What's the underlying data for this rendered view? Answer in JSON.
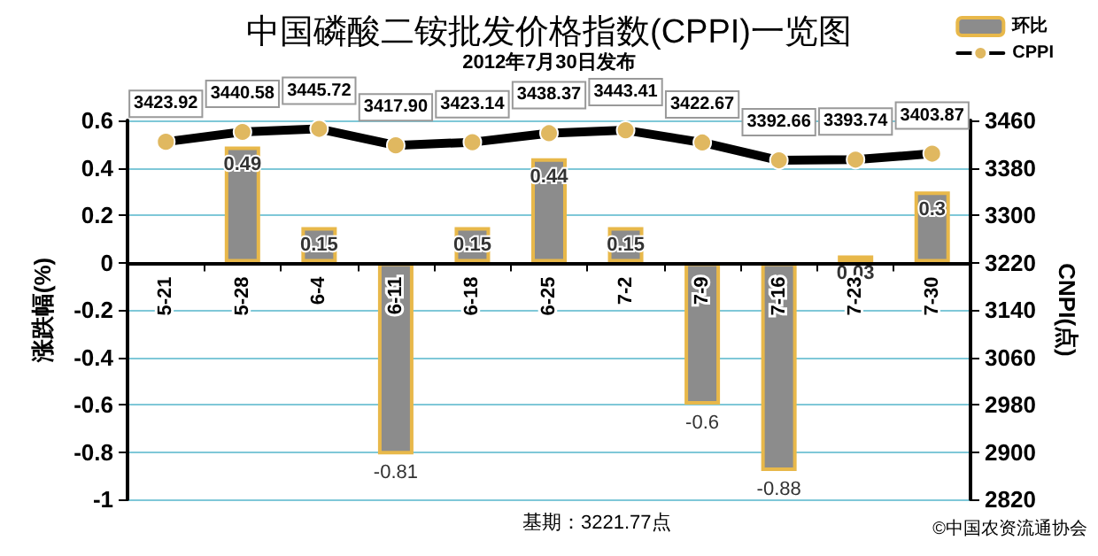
{
  "chart_data": {
    "type": "bar",
    "title": "中国磷酸二铵批发价格指数(CPPI)一览图",
    "subtitle": "2012年7月30日发布",
    "ylabel": "涨跌幅(%)",
    "y2label": "CNPI(点)",
    "categories": [
      "5-21",
      "5-28",
      "6-4",
      "6-11",
      "6-18",
      "6-25",
      "7-2",
      "7-9",
      "7-16",
      "7-23",
      "7-30"
    ],
    "series": [
      {
        "name": "环比",
        "color": "#8c8c8c",
        "values": [
          null,
          0.49,
          0.15,
          -0.81,
          0.15,
          0.44,
          0.15,
          -0.6,
          -0.88,
          0.03,
          0.3
        ],
        "value_labels": [
          null,
          "0.49",
          "0.15",
          "-0.81",
          "0.15",
          "0.44",
          "0.15",
          "-0.6",
          "-0.88",
          "0.03",
          "0.3"
        ]
      },
      {
        "name": "CPPI",
        "type": "line",
        "axis": "y2",
        "color": "#000000",
        "values": [
          3423.92,
          3440.58,
          3445.72,
          3417.9,
          3423.14,
          3438.37,
          3443.41,
          3422.67,
          3392.66,
          3393.74,
          3403.87
        ],
        "value_labels": [
          "3423.92",
          "3440.58",
          "3445.72",
          "3417.90",
          "3423.14",
          "3438.37",
          "3443.41",
          "3422.67",
          "3392.66",
          "3393.74",
          "3403.87"
        ]
      }
    ],
    "ylim": [
      -1,
      0.6
    ],
    "yticks": [
      -1,
      -0.8,
      -0.6,
      -0.4,
      -0.2,
      0,
      0.2,
      0.4,
      0.6
    ],
    "y2lim": [
      2820,
      3460
    ],
    "y2ticks": [
      2820,
      2900,
      2980,
      3060,
      3140,
      3220,
      3300,
      3380,
      3460
    ],
    "grid": true,
    "legend": "top right",
    "marker": "circle",
    "line_style": "solid",
    "annotations": [
      "基期：3221.77点",
      "©中国农资流通协会"
    ]
  }
}
